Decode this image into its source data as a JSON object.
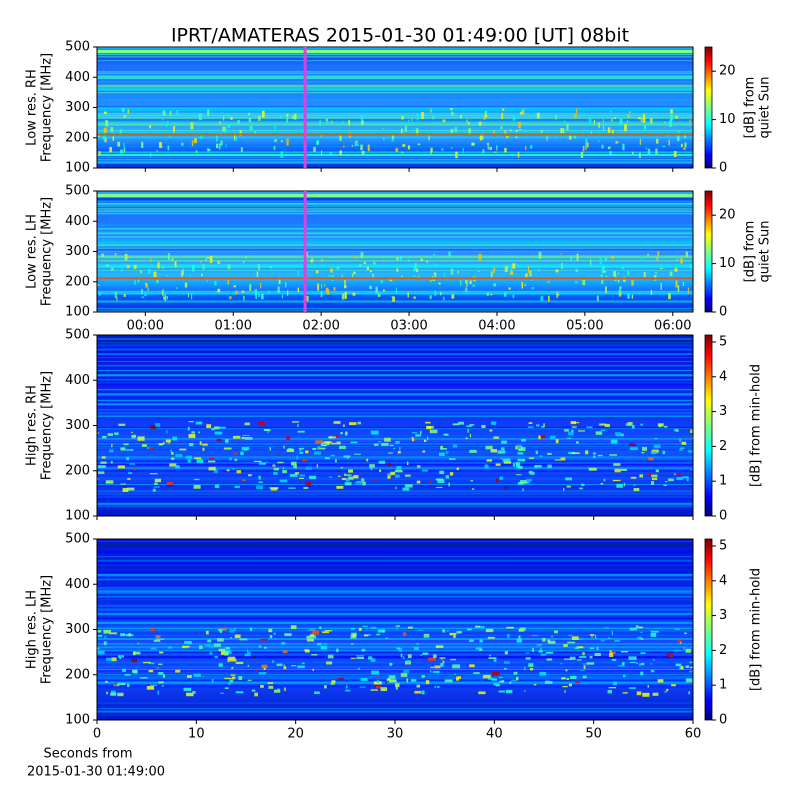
{
  "title": "IPRT/AMATERAS 2015-01-30 01:49:00 [UT]   08bit",
  "chart_data": [
    {
      "type": "spectrogram",
      "ylabel": [
        "Low res. RH",
        "Frequency [MHz]"
      ],
      "xlim": [
        -0.55,
        6.23
      ],
      "xticks": [
        0,
        1,
        2,
        3,
        4,
        5,
        6
      ],
      "cursor_x": 1.817,
      "cursor_color": "#e040e0",
      "ylim": [
        100,
        500
      ],
      "yticks": [
        100,
        200,
        300,
        400,
        500
      ],
      "zlim": [
        0,
        25
      ],
      "zticks": [
        0,
        10,
        20
      ],
      "zlabel": [
        "[dB] from",
        "quiet Sun"
      ],
      "colormap": "jet"
    },
    {
      "type": "spectrogram",
      "ylabel": [
        "Low res. LH",
        "Frequency [MHz]"
      ],
      "xlim": [
        -0.55,
        6.23
      ],
      "xticks": [
        {
          "value": 0,
          "label": "00:00"
        },
        {
          "value": 1,
          "label": "01:00"
        },
        {
          "value": 2,
          "label": "02:00"
        },
        {
          "value": 3,
          "label": "03:00"
        },
        {
          "value": 4,
          "label": "04:00"
        },
        {
          "value": 5,
          "label": "05:00"
        },
        {
          "value": 6,
          "label": "06:00"
        }
      ],
      "cursor_x": 1.817,
      "cursor_color": "#e040e0",
      "ylim": [
        100,
        500
      ],
      "yticks": [
        100,
        200,
        300,
        400,
        500
      ],
      "zlim": [
        0,
        25
      ],
      "zticks": [
        0,
        10,
        20
      ],
      "zlabel": [
        "[dB] from",
        "quiet Sun"
      ],
      "colormap": "jet"
    },
    {
      "type": "spectrogram",
      "ylabel": [
        "High res. RH",
        "Frequency [MHz]"
      ],
      "xlim": [
        0,
        60
      ],
      "xticks": [
        0,
        10,
        20,
        30,
        40,
        50,
        60
      ],
      "ylim": [
        100,
        500
      ],
      "yticks": [
        100,
        200,
        300,
        400,
        500
      ],
      "zlim": [
        0,
        5.2
      ],
      "zticks": [
        0,
        1,
        2,
        3,
        4,
        5
      ],
      "zlabel": [
        "[dB] from min-hold"
      ],
      "colormap": "jet"
    },
    {
      "type": "spectrogram",
      "ylabel": [
        "High res. LH",
        "Frequency [MHz]"
      ],
      "xlim": [
        0,
        60
      ],
      "xticks": [
        0,
        10,
        20,
        30,
        40,
        50,
        60
      ],
      "xlabel": [
        "Seconds from",
        "2015-01-30 01:49:00"
      ],
      "ylim": [
        100,
        500
      ],
      "yticks": [
        100,
        200,
        300,
        400,
        500
      ],
      "zlim": [
        0,
        5.2
      ],
      "zticks": [
        0,
        1,
        2,
        3,
        4,
        5
      ],
      "zlabel": [
        "[dB] from min-hold"
      ],
      "colormap": "jet"
    }
  ]
}
